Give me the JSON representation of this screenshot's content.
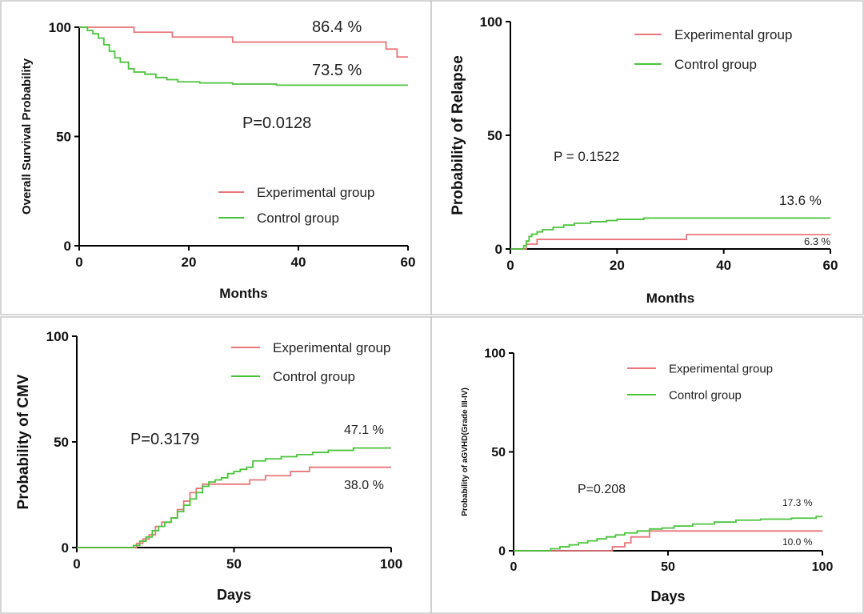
{
  "colors": {
    "experimental": "#e8767a",
    "control": "#49c43a",
    "border": "#c8c8c8"
  },
  "chart_data": [
    {
      "type": "line",
      "panel": "top-left",
      "xlabel": "Months",
      "ylabel": "Overall Survival Probability",
      "xlim": [
        0,
        60
      ],
      "ylim": [
        0,
        100
      ],
      "xticks": [
        0,
        20,
        40,
        60
      ],
      "yticks": [
        0,
        50,
        100
      ],
      "legend_placement": "bottom-right",
      "pvalue_text": "P=0.0128",
      "series": [
        {
          "name": "Experimental group",
          "color_key": "experimental",
          "step": true,
          "x": [
            0,
            10,
            17,
            28,
            55,
            56,
            58,
            60
          ],
          "y": [
            100,
            97.7,
            95.5,
            93.2,
            93.2,
            90.0,
            86.4,
            86.4
          ],
          "end_label": "86.4 %"
        },
        {
          "name": "Control group",
          "color_key": "control",
          "step": true,
          "x": [
            0,
            1.5,
            2.5,
            3.5,
            4.5,
            5.5,
            6.5,
            7.5,
            9,
            10,
            12,
            14,
            16,
            18,
            22,
            28,
            36,
            60
          ],
          "y": [
            100,
            98.5,
            97,
            95,
            92,
            89,
            86,
            84,
            81,
            79.5,
            78.5,
            77,
            76,
            75,
            74.5,
            74,
            73.5,
            73.5
          ],
          "end_label": "73.5 %"
        }
      ]
    },
    {
      "type": "line",
      "panel": "top-right",
      "xlabel": "Months",
      "ylabel": "Probability of Relapse",
      "xlim": [
        0,
        60
      ],
      "ylim": [
        0,
        100
      ],
      "xticks": [
        0,
        20,
        40,
        60
      ],
      "yticks": [
        0,
        50,
        100
      ],
      "legend_placement": "top-right",
      "pvalue_text": "P = 0.1522",
      "series": [
        {
          "name": "Experimental group",
          "color_key": "experimental",
          "step": true,
          "x": [
            0,
            2,
            3,
            5,
            33,
            60
          ],
          "y": [
            0,
            0,
            2.1,
            4.2,
            6.3,
            6.3
          ],
          "end_label": "6.3 %"
        },
        {
          "name": "Control group",
          "color_key": "control",
          "step": true,
          "x": [
            0,
            2,
            2.5,
            3,
            3.5,
            4,
            5,
            6,
            8,
            10,
            12,
            15,
            18,
            20,
            25,
            60
          ],
          "y": [
            0,
            0,
            1.5,
            3.5,
            5.5,
            6.5,
            7.5,
            8.5,
            9.5,
            10.5,
            11.3,
            12,
            12.5,
            13,
            13.6,
            13.6
          ],
          "end_label": "13.6 %"
        }
      ]
    },
    {
      "type": "line",
      "panel": "bottom-left",
      "xlabel": "Days",
      "ylabel": "Probability of CMV",
      "xlim": [
        0,
        100
      ],
      "ylim": [
        0,
        100
      ],
      "xticks": [
        0,
        50,
        100
      ],
      "yticks": [
        0,
        50,
        100
      ],
      "legend_placement": "top-right",
      "pvalue_text": "P=0.3179",
      "series": [
        {
          "name": "Experimental group",
          "color_key": "experimental",
          "step": true,
          "x": [
            0,
            19,
            21,
            23,
            25,
            27,
            30,
            32,
            34,
            36,
            38,
            40,
            50,
            55,
            60,
            68,
            74,
            100
          ],
          "y": [
            0,
            2,
            4,
            6,
            10,
            12,
            14,
            18,
            22,
            26,
            28,
            30,
            30,
            32,
            34,
            36,
            38,
            38
          ],
          "end_label": "38.0 %"
        },
        {
          "name": "Control group",
          "color_key": "control",
          "step": true,
          "x": [
            0,
            18,
            20,
            22,
            24,
            26,
            28,
            30,
            32,
            34,
            36,
            38,
            40,
            42,
            44,
            46,
            48,
            50,
            52,
            54,
            56,
            60,
            65,
            70,
            75,
            80,
            88,
            100
          ],
          "y": [
            0,
            1,
            3,
            5,
            8,
            10,
            12,
            14,
            17,
            20,
            23,
            26,
            29,
            31,
            32,
            33,
            35,
            36,
            37,
            38,
            41,
            42,
            43,
            44,
            45,
            46,
            47.1,
            47.1
          ],
          "end_label": "47.1 %"
        }
      ]
    },
    {
      "type": "line",
      "panel": "bottom-right",
      "xlabel": "Days",
      "ylabel": "Probability of aGVHD(Grade III-IV)",
      "xlim": [
        0,
        100
      ],
      "ylim": [
        0,
        100
      ],
      "xticks": [
        0,
        50,
        100
      ],
      "yticks": [
        0,
        50,
        100
      ],
      "legend_placement": "top-right",
      "pvalue_text": "P=0.208",
      "series": [
        {
          "name": "Experimental group",
          "color_key": "experimental",
          "step": true,
          "x": [
            0,
            28,
            32,
            36,
            38,
            44,
            100
          ],
          "y": [
            0,
            0,
            2,
            4,
            7,
            10,
            10
          ],
          "end_label": "10.0  %"
        },
        {
          "name": "Control group",
          "color_key": "control",
          "step": true,
          "x": [
            0,
            12,
            15,
            18,
            21,
            24,
            27,
            30,
            33,
            36,
            40,
            44,
            48,
            52,
            58,
            65,
            72,
            80,
            90,
            98,
            100
          ],
          "y": [
            0,
            1,
            2,
            3,
            4,
            5,
            6,
            7,
            8,
            9,
            10,
            11,
            11.5,
            12.5,
            13.5,
            14.5,
            15.5,
            16,
            16.5,
            17.3,
            17.3
          ],
          "end_label": "17.3 %"
        }
      ]
    }
  ]
}
